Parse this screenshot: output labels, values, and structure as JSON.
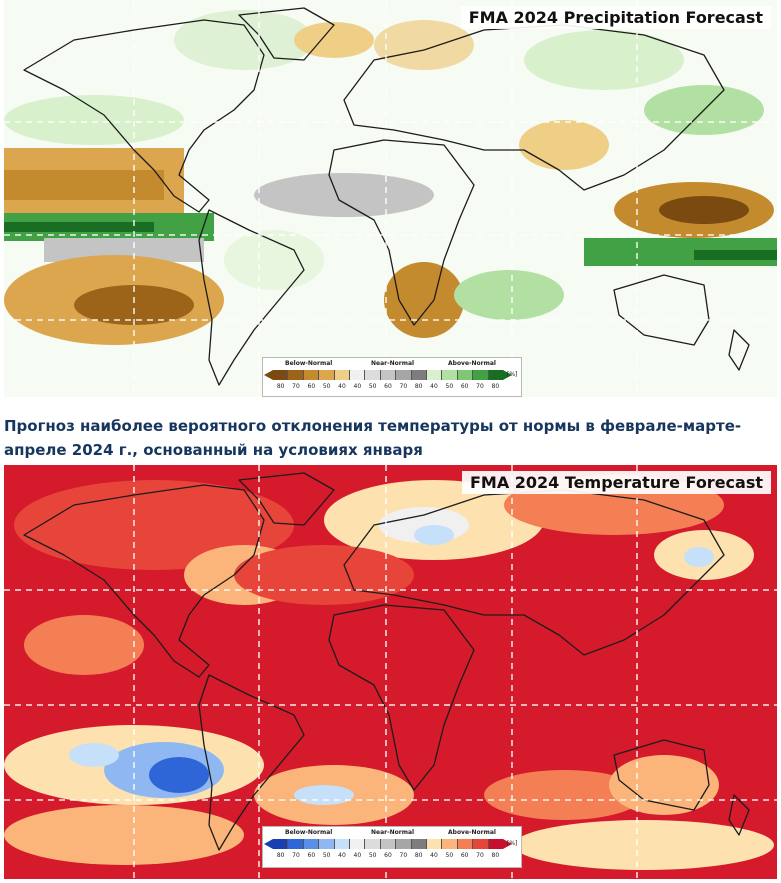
{
  "precipitation_map": {
    "title": "FMA 2024 Precipitation Forecast",
    "legend": {
      "below_label": "Below-Normal",
      "near_label": "Near-Normal",
      "above_label": "Above-Normal",
      "unit": "[%]",
      "ticks": [
        "80",
        "70",
        "60",
        "50",
        "40",
        "40",
        "50",
        "60",
        "70",
        "80",
        "40",
        "50",
        "60",
        "70",
        "80"
      ],
      "colors": [
        "#7a4a10",
        "#9c6418",
        "#c48a2e",
        "#dba64e",
        "#efcf86",
        "#f0f0f0",
        "#dcdcdc",
        "#c4c4c4",
        "#a6a6a6",
        "#7d7d7d",
        "#d8f0cc",
        "#b2e0a2",
        "#7ec872",
        "#41a144",
        "#1a6e24"
      ],
      "base_color": "#f6fbf3"
    }
  },
  "caption": "Прогноз наиболее вероятного отклонения температуры от нормы в феврале-марте-апреле 2024 г., основанный на условиях января",
  "temperature_map": {
    "title": "FMA 2024 Temperature Forecast",
    "legend": {
      "below_label": "Below-Normal",
      "near_label": "Near-Normal",
      "above_label": "Above-Normal",
      "unit": "[%]",
      "ticks": [
        "80",
        "70",
        "60",
        "50",
        "40",
        "40",
        "50",
        "60",
        "70",
        "80",
        "40",
        "50",
        "60",
        "70",
        "80"
      ],
      "colors": [
        "#1a3fb0",
        "#2e66d8",
        "#5a8ee8",
        "#8fb8f2",
        "#c6e0fa",
        "#f0f0f0",
        "#dcdcdc",
        "#c4c4c4",
        "#a6a6a6",
        "#7d7d7d",
        "#fde2b0",
        "#fbb57a",
        "#f57f55",
        "#e8453a",
        "#c8102e"
      ],
      "base_color": "#d51b2b"
    }
  }
}
